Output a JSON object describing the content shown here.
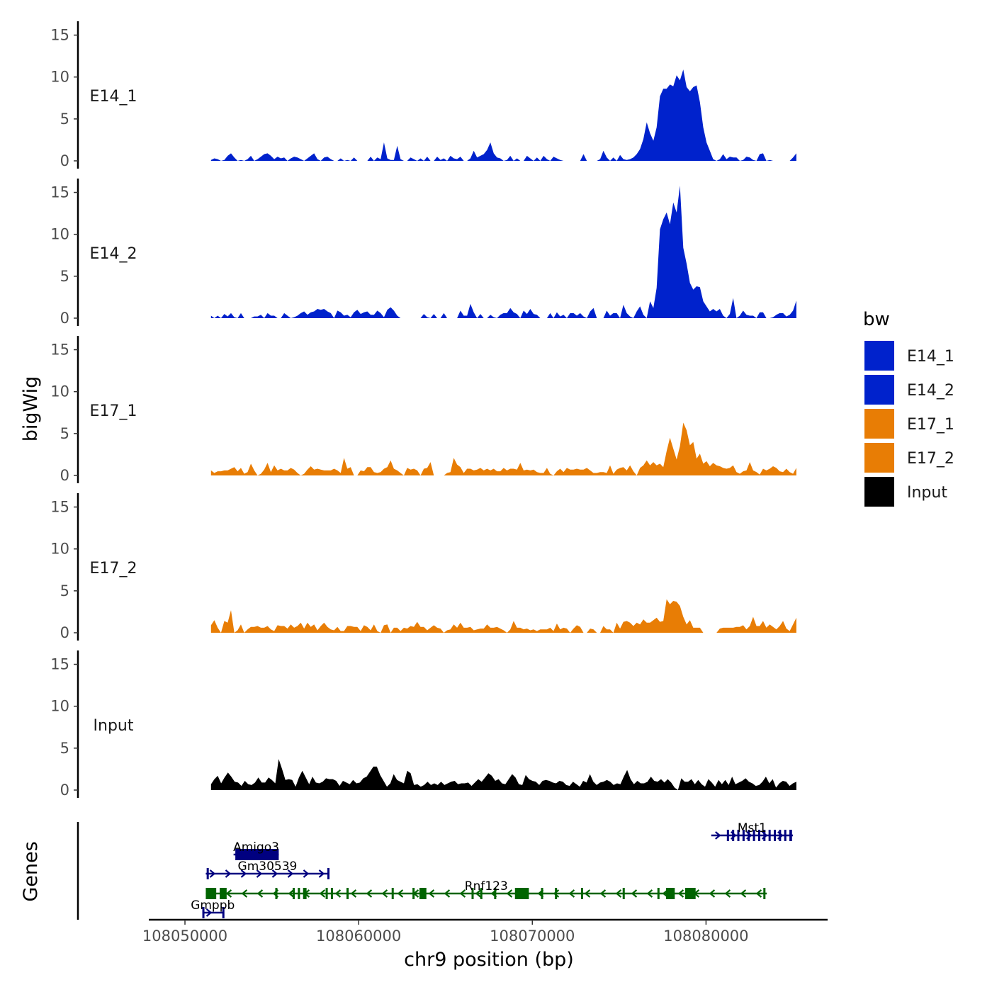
{
  "chart_data": {
    "type": "area",
    "xlabel": "chr9 position (bp)",
    "ylabel": "bigWig",
    "genes_label": "Genes",
    "xlim": [
      108048000,
      108087000
    ],
    "ylim": [
      0,
      16
    ],
    "x_ticks": [
      108050000,
      108060000,
      108070000,
      108080000
    ],
    "x_tick_labels": [
      "108050000",
      "108060000",
      "108070000",
      "108080000"
    ],
    "y_ticks": [
      0,
      5,
      10,
      15
    ],
    "y_tick_labels": [
      "0",
      "5",
      "10",
      "15"
    ],
    "x_start": 108051500,
    "x_end": 108085200,
    "legend": {
      "title": "bw",
      "entries": [
        {
          "label": "E14_1",
          "color": "#0022cc"
        },
        {
          "label": "E14_2",
          "color": "#0022cc"
        },
        {
          "label": "E17_1",
          "color": "#e87d05"
        },
        {
          "label": "E17_2",
          "color": "#e87d05"
        },
        {
          "label": "Input",
          "color": "#000000"
        }
      ]
    },
    "series": [
      {
        "name": "E14_1",
        "label": "E14_1",
        "color": "#0022cc",
        "values": [
          0.1,
          0.3,
          0.2,
          0.0,
          0.1,
          0.6,
          0.9,
          0.4,
          0.0,
          0.1,
          0.0,
          0.2,
          0.6,
          0.0,
          0.2,
          0.5,
          0.8,
          0.9,
          0.6,
          0.2,
          0.5,
          0.3,
          0.4,
          0.0,
          0.3,
          0.5,
          0.4,
          0.2,
          0.0,
          0.3,
          0.6,
          0.9,
          0.2,
          0.0,
          0.4,
          0.5,
          0.2,
          0.0,
          0.0,
          0.3,
          0.0,
          0.1,
          0.0,
          0.4,
          0.0,
          0.0,
          0.0,
          0.0,
          0.5,
          0.0,
          0.4,
          0.2,
          2.2,
          0.3,
          0.1,
          0.1,
          1.8,
          0.2,
          0.0,
          0.0,
          0.4,
          0.2,
          0.0,
          0.3,
          0.0,
          0.5,
          0.0,
          0.0,
          0.5,
          0.1,
          0.3,
          0.0,
          0.6,
          0.3,
          0.2,
          0.5,
          0.0,
          0.0,
          0.3,
          1.2,
          0.4,
          0.6,
          0.8,
          1.3,
          2.2,
          0.9,
          0.4,
          0.3,
          0.0,
          0.1,
          0.6,
          0.0,
          0.3,
          0.0,
          0.0,
          0.6,
          0.3,
          0.0,
          0.4,
          0.0,
          0.6,
          0.2,
          0.0,
          0.5,
          0.3,
          0.1,
          0.0,
          0.0,
          0.0,
          0.0,
          0.0,
          0.0,
          0.8,
          0.0,
          0.0,
          0.0,
          0.0,
          0.2,
          1.2,
          0.4,
          0.0,
          0.4,
          0.0,
          0.7,
          0.2,
          0.1,
          0.2,
          0.4,
          0.8,
          1.4,
          2.6,
          4.6,
          3.3,
          2.4,
          4.0,
          7.7,
          8.6,
          8.6,
          9.1,
          8.9,
          10.2,
          9.6,
          10.9,
          8.8,
          8.3,
          8.8,
          9.0,
          7.0,
          4.0,
          2.2,
          1.2,
          0.2,
          0.0,
          0.2,
          0.8,
          0.2,
          0.5,
          0.4,
          0.4,
          0.0,
          0.1,
          0.5,
          0.4,
          0.1,
          0.0,
          0.8,
          0.9,
          0.0,
          0.1,
          0.0,
          0.0,
          0.0,
          0.0,
          0.0,
          0.0,
          0.4,
          0.9
        ]
      },
      {
        "name": "E14_2",
        "label": "E14_2",
        "color": "#0022cc",
        "values": [
          0.3,
          0.0,
          0.3,
          0.0,
          0.5,
          0.2,
          0.6,
          0.1,
          0.0,
          0.6,
          0.0,
          0.0,
          0.0,
          0.2,
          0.2,
          0.4,
          0.0,
          0.6,
          0.3,
          0.3,
          0.0,
          0.0,
          0.6,
          0.3,
          0.0,
          0.1,
          0.3,
          0.6,
          0.8,
          0.4,
          0.7,
          0.8,
          1.1,
          1.0,
          1.1,
          0.8,
          0.6,
          0.0,
          0.9,
          0.7,
          0.3,
          0.4,
          0.1,
          0.7,
          1.0,
          0.5,
          0.7,
          0.8,
          0.4,
          0.4,
          0.9,
          0.6,
          0.1,
          1.0,
          1.3,
          0.9,
          0.3,
          0.0,
          0.0,
          0.0,
          0.0,
          0.0,
          0.0,
          0.0,
          0.5,
          0.1,
          0.0,
          0.5,
          0.0,
          0.0,
          0.6,
          0.0,
          0.0,
          0.0,
          0.0,
          0.9,
          0.3,
          0.3,
          1.7,
          0.7,
          0.0,
          0.5,
          0.0,
          0.0,
          0.4,
          0.1,
          0.0,
          0.4,
          0.6,
          0.6,
          1.2,
          0.7,
          0.5,
          0.0,
          0.9,
          0.5,
          1.1,
          0.5,
          0.4,
          0.0,
          0.0,
          0.0,
          0.6,
          0.0,
          0.7,
          0.2,
          0.4,
          0.0,
          0.6,
          0.6,
          0.3,
          0.6,
          0.2,
          0.0,
          0.8,
          1.2,
          0.0,
          0.0,
          0.0,
          0.9,
          0.3,
          0.6,
          0.6,
          0.0,
          1.6,
          0.6,
          0.2,
          0.0,
          0.8,
          1.4,
          0.4,
          0.0,
          2.0,
          1.2,
          3.6,
          10.6,
          11.8,
          12.6,
          11.2,
          13.8,
          12.6,
          15.8,
          8.4,
          6.5,
          4.2,
          3.4,
          3.8,
          3.7,
          2.0,
          1.4,
          0.8,
          1.1,
          0.8,
          1.1,
          0.3,
          0.0,
          0.5,
          2.4,
          0.0,
          0.3,
          0.9,
          0.4,
          0.3,
          0.3,
          0.0,
          0.7,
          0.7,
          0.0,
          0.0,
          0.1,
          0.4,
          0.6,
          0.6,
          0.2,
          0.4,
          0.9,
          2.1
        ]
      },
      {
        "name": "E17_1",
        "label": "E17_1",
        "color": "#e87d05",
        "values": [
          0.6,
          0.3,
          0.5,
          0.5,
          0.6,
          0.6,
          0.8,
          1.0,
          0.5,
          0.9,
          0.2,
          0.4,
          1.4,
          0.6,
          0.0,
          0.2,
          0.7,
          1.5,
          0.4,
          1.2,
          0.6,
          0.8,
          0.6,
          0.6,
          0.9,
          0.7,
          0.3,
          0.0,
          0.2,
          0.7,
          1.1,
          0.7,
          0.8,
          0.7,
          0.6,
          0.6,
          0.6,
          0.8,
          0.6,
          0.3,
          2.1,
          0.8,
          1.0,
          0.0,
          0.0,
          0.6,
          0.5,
          1.0,
          1.0,
          0.4,
          0.3,
          0.4,
          0.8,
          1.0,
          1.8,
          0.8,
          0.6,
          0.3,
          0.0,
          0.9,
          0.7,
          0.8,
          0.6,
          0.0,
          0.8,
          0.9,
          1.6,
          0.0,
          0.0,
          0.0,
          0.0,
          0.3,
          0.4,
          2.1,
          1.3,
          1.0,
          0.3,
          0.8,
          0.8,
          0.6,
          0.7,
          0.9,
          0.6,
          0.8,
          0.6,
          0.8,
          0.5,
          0.5,
          0.9,
          0.6,
          0.8,
          0.8,
          0.7,
          1.5,
          0.6,
          0.7,
          0.6,
          0.7,
          0.4,
          0.3,
          0.3,
          0.9,
          0.2,
          0.0,
          0.5,
          0.8,
          0.4,
          0.9,
          0.7,
          0.7,
          0.8,
          0.7,
          0.7,
          0.9,
          0.6,
          0.3,
          0.3,
          0.4,
          0.4,
          0.3,
          1.2,
          0.2,
          0.7,
          0.9,
          1.0,
          0.6,
          1.2,
          0.5,
          0.0,
          0.9,
          1.2,
          1.8,
          1.2,
          1.6,
          1.2,
          1.4,
          1.0,
          2.9,
          4.5,
          3.2,
          1.9,
          3.5,
          6.3,
          5.4,
          3.6,
          4.0,
          2.0,
          2.6,
          1.4,
          1.7,
          1.1,
          1.5,
          1.2,
          1.1,
          0.9,
          0.8,
          0.9,
          1.2,
          0.4,
          0.2,
          0.5,
          0.6,
          1.6,
          0.6,
          0.4,
          0.1,
          0.8,
          0.6,
          0.8,
          1.1,
          0.9,
          0.5,
          0.4,
          0.8,
          0.4,
          0.2,
          0.9
        ]
      },
      {
        "name": "E17_2",
        "label": "E17_2",
        "color": "#e87d05",
        "values": [
          0.9,
          1.5,
          0.6,
          0.0,
          1.4,
          1.2,
          2.7,
          0.0,
          0.3,
          1.0,
          0.0,
          0.4,
          0.7,
          0.7,
          0.8,
          0.6,
          0.6,
          0.8,
          0.4,
          0.2,
          0.9,
          0.8,
          0.8,
          0.5,
          1.0,
          0.6,
          0.8,
          1.2,
          0.5,
          1.2,
          0.7,
          1.0,
          0.3,
          0.8,
          1.2,
          0.7,
          0.4,
          0.3,
          0.7,
          0.2,
          0.2,
          0.8,
          0.8,
          0.7,
          0.7,
          0.2,
          0.9,
          0.7,
          0.3,
          1.0,
          0.2,
          0.0,
          0.9,
          1.0,
          0.0,
          0.6,
          0.6,
          0.2,
          0.6,
          0.5,
          0.8,
          0.7,
          1.3,
          0.7,
          0.7,
          0.3,
          0.6,
          0.9,
          0.6,
          0.5,
          0.0,
          0.3,
          0.4,
          1.0,
          0.6,
          1.2,
          0.6,
          0.6,
          0.7,
          0.3,
          0.4,
          0.5,
          0.5,
          1.0,
          0.6,
          0.6,
          0.7,
          0.5,
          0.3,
          0.0,
          0.4,
          1.4,
          0.6,
          0.6,
          0.4,
          0.5,
          0.3,
          0.4,
          0.2,
          0.4,
          0.4,
          0.4,
          0.6,
          0.2,
          1.1,
          0.4,
          0.6,
          0.5,
          0.0,
          0.5,
          0.9,
          0.7,
          0.0,
          0.0,
          0.5,
          0.4,
          0.0,
          0.0,
          0.8,
          0.4,
          0.4,
          0.0,
          1.2,
          0.5,
          1.3,
          1.4,
          1.2,
          0.8,
          1.2,
          1.0,
          1.6,
          1.2,
          1.2,
          1.5,
          1.8,
          1.3,
          1.4,
          4.0,
          3.4,
          3.8,
          3.7,
          3.2,
          1.9,
          1.0,
          1.5,
          0.6,
          0.6,
          0.6,
          0.0,
          0.0,
          0.0,
          0.0,
          0.0,
          0.5,
          0.6,
          0.6,
          0.6,
          0.6,
          0.7,
          0.7,
          0.9,
          0.4,
          0.8,
          1.9,
          0.8,
          0.8,
          1.4,
          0.6,
          1.0,
          0.7,
          0.4,
          0.8,
          1.4,
          0.5,
          0.2,
          1.0,
          1.8
        ]
      },
      {
        "name": "Input",
        "label": "Input",
        "color": "#000000",
        "values": [
          0.7,
          1.3,
          1.7,
          0.8,
          1.5,
          2.1,
          1.6,
          1.0,
          0.9,
          0.5,
          1.1,
          0.7,
          0.6,
          0.9,
          1.5,
          0.9,
          0.9,
          1.5,
          1.2,
          0.8,
          3.7,
          2.5,
          1.2,
          1.3,
          1.2,
          0.4,
          1.5,
          2.3,
          1.5,
          0.7,
          1.6,
          0.9,
          0.8,
          1.0,
          1.4,
          1.3,
          1.3,
          1.1,
          0.5,
          1.1,
          0.9,
          0.7,
          1.2,
          0.8,
          0.9,
          1.4,
          1.6,
          2.2,
          2.8,
          2.8,
          1.8,
          1.1,
          0.4,
          0.8,
          1.9,
          1.2,
          1.0,
          0.8,
          2.3,
          2.0,
          0.6,
          0.7,
          0.4,
          0.6,
          1.0,
          0.6,
          0.8,
          0.6,
          1.0,
          0.6,
          0.8,
          1.0,
          1.1,
          0.7,
          0.8,
          0.8,
          0.9,
          0.5,
          0.9,
          1.3,
          1.0,
          1.5,
          2.0,
          1.7,
          1.1,
          1.3,
          0.8,
          0.7,
          1.3,
          1.9,
          1.5,
          0.7,
          0.6,
          1.8,
          1.3,
          1.1,
          1.0,
          0.6,
          1.1,
          1.2,
          1.1,
          0.9,
          0.8,
          1.1,
          1.0,
          0.6,
          0.5,
          1.0,
          0.7,
          0.4,
          1.1,
          0.9,
          1.9,
          1.0,
          0.6,
          0.9,
          1.0,
          1.2,
          1.0,
          0.6,
          0.8,
          0.7,
          1.6,
          2.4,
          1.3,
          0.7,
          1.1,
          0.8,
          0.8,
          1.0,
          1.6,
          1.1,
          1.0,
          1.3,
          0.9,
          1.3,
          0.9,
          0.3,
          0.0,
          1.4,
          1.0,
          1.0,
          1.3,
          0.7,
          1.2,
          0.7,
          0.4,
          1.3,
          0.9,
          0.4,
          1.2,
          0.7,
          1.2,
          0.6,
          1.6,
          0.7,
          0.9,
          1.1,
          1.4,
          1.0,
          0.8,
          0.5,
          0.6,
          1.0,
          1.6,
          0.8,
          1.3,
          0.3,
          0.8,
          1.1,
          1.0,
          0.5,
          0.8,
          1.0
        ]
      }
    ],
    "genes": [
      {
        "name": "Mst1",
        "strand": "+",
        "color": "#000080",
        "start": 108080300,
        "end": 108085000,
        "row": 0,
        "exons": [
          [
            108081200,
            108081300
          ],
          [
            108081500,
            108081600
          ],
          [
            108081800,
            108081900
          ],
          [
            108082100,
            108082200
          ],
          [
            108082400,
            108082500
          ],
          [
            108082700,
            108082800
          ],
          [
            108083000,
            108083100
          ],
          [
            108083300,
            108083400
          ],
          [
            108083600,
            108083700
          ],
          [
            108083900,
            108084000
          ],
          [
            108084200,
            108084300
          ],
          [
            108084500,
            108084600
          ],
          [
            108084800,
            108084950
          ]
        ]
      },
      {
        "name": "Amigo3",
        "strand": "+",
        "color": "#000080",
        "start": 108052800,
        "end": 108055400,
        "row": 1,
        "exons": [
          [
            108052900,
            108055400
          ]
        ]
      },
      {
        "name": "Gm30539",
        "strand": "+",
        "color": "#000080",
        "start": 108051200,
        "end": 108058300,
        "row": 2,
        "exons": [
          [
            108051250,
            108051350
          ],
          [
            108058200,
            108058300
          ]
        ]
      },
      {
        "name": "Rnf123",
        "strand": "-",
        "color": "#006400",
        "start": 108051200,
        "end": 108083500,
        "row": 3,
        "exons": [
          [
            108051200,
            108051800
          ],
          [
            108052000,
            108052400
          ],
          [
            108055200,
            108055300
          ],
          [
            108056200,
            108056300
          ],
          [
            108056500,
            108056600
          ],
          [
            108056800,
            108057000
          ],
          [
            108058100,
            108058200
          ],
          [
            108058400,
            108058500
          ],
          [
            108059300,
            108059400
          ],
          [
            108061900,
            108062000
          ],
          [
            108063100,
            108063200
          ],
          [
            108063500,
            108063900
          ],
          [
            108066500,
            108066600
          ],
          [
            108067000,
            108067100
          ],
          [
            108067800,
            108067900
          ],
          [
            108069000,
            108069800
          ],
          [
            108070500,
            108070600
          ],
          [
            108071300,
            108071400
          ],
          [
            108072800,
            108072900
          ],
          [
            108075200,
            108075300
          ],
          [
            108077200,
            108077300
          ],
          [
            108077700,
            108078200
          ],
          [
            108078800,
            108079400
          ],
          [
            108083300,
            108083400
          ]
        ]
      },
      {
        "name": "Gmppb",
        "strand": "+",
        "color": "#000080",
        "start": 108051000,
        "end": 108052200,
        "row": 4,
        "exons": [
          [
            108051000,
            108051050
          ],
          [
            108052150,
            108052200
          ]
        ]
      }
    ]
  }
}
